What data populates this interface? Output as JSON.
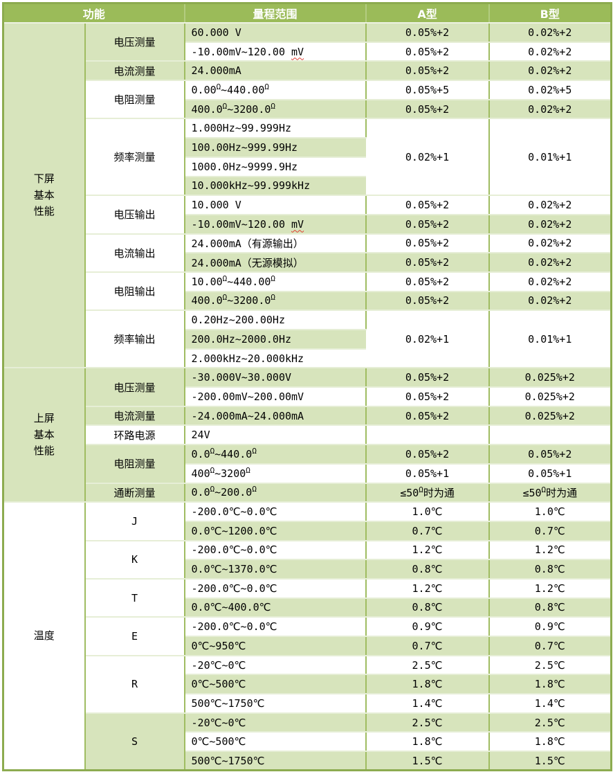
{
  "colors": {
    "header_green": "#9BBB59",
    "stripe_green": "#D7E4BC",
    "stripe_white": "#FFFFFF",
    "border_green": "#9FBC61",
    "squiggle_red": "#E03A2F",
    "header_text": "#FFFFFF"
  },
  "table": {
    "headers": [
      {
        "label": "功能",
        "colspan": 2
      },
      {
        "label": "量程范围",
        "colspan": 1
      },
      {
        "label": "A型",
        "colspan": 1
      },
      {
        "label": "B型",
        "colspan": 1
      }
    ],
    "groups": [
      {
        "label": "下屏\n基本\n性能",
        "functions": [
          {
            "label": "电压测量",
            "rows": [
              {
                "range": "60.000 V",
                "a": "0.05%+2",
                "b": "0.02%+2"
              },
              {
                "range": "-10.00mV~120.00 mV",
                "a": "0.05%+2",
                "b": "0.02%+2",
                "squiggle_under": "mV"
              }
            ]
          },
          {
            "label": "电流测量",
            "rows": [
              {
                "range": "24.000mA",
                "a": "0.05%+2",
                "b": "0.02%+2"
              }
            ]
          },
          {
            "label": "电阻测量",
            "rows": [
              {
                "range": "0.00Ω~440.00Ω",
                "a": "0.05%+5",
                "b": "0.02%+5"
              },
              {
                "range": "400.0Ω~3200.0Ω",
                "a": "0.05%+2",
                "b": "0.02%+2"
              }
            ]
          },
          {
            "label": "频率测量",
            "merged": {
              "a": "0.02%+1",
              "b": "0.01%+1"
            },
            "rows": [
              {
                "range": "1.000Hz~99.999Hz"
              },
              {
                "range": "100.00Hz~999.99Hz"
              },
              {
                "range": "1000.0Hz~9999.9Hz"
              },
              {
                "range": "10.000kHz~99.999kHz"
              }
            ]
          },
          {
            "label": "电压输出",
            "rows": [
              {
                "range": "10.000 V",
                "a": "0.05%+2",
                "b": "0.02%+2"
              },
              {
                "range": "-10.00mV~120.00 mV",
                "a": "0.05%+2",
                "b": "0.02%+2",
                "squiggle_under": "mV"
              }
            ]
          },
          {
            "label": "电流输出",
            "rows": [
              {
                "range": "24.000mA（有源输出）",
                "a": "0.05%+2",
                "b": "0.02%+2"
              },
              {
                "range": "24.000mA（无源模拟）",
                "a": "0.05%+2",
                "b": "0.02%+2"
              }
            ]
          },
          {
            "label": "电阻输出",
            "rows": [
              {
                "range": "10.00Ω~440.00Ω",
                "a": "0.05%+2",
                "b": "0.02%+2"
              },
              {
                "range": "400.0Ω~3200.0Ω",
                "a": "0.05%+2",
                "b": "0.02%+2"
              }
            ]
          },
          {
            "label": "频率输出",
            "merged": {
              "a": "0.02%+1",
              "b": "0.01%+1"
            },
            "rows": [
              {
                "range": "0.20Hz~200.00Hz"
              },
              {
                "range": "200.0Hz~2000.0Hz"
              },
              {
                "range": "2.000kHz~20.000kHz"
              }
            ]
          }
        ]
      },
      {
        "label": "上屏\n基本\n性能",
        "functions": [
          {
            "label": "电压测量",
            "rows": [
              {
                "range": "-30.000V~30.000V",
                "a": "0.05%+2",
                "b": "0.025%+2"
              },
              {
                "range": "-200.00mV~200.00mV",
                "a": "0.05%+2",
                "b": "0.025%+2"
              }
            ]
          },
          {
            "label": "电流测量",
            "rows": [
              {
                "range": "-24.000mA~24.000mA",
                "a": "0.05%+2",
                "b": "0.025%+2"
              }
            ]
          },
          {
            "label": "环路电源",
            "rows": [
              {
                "range": "24V",
                "a": "",
                "b": ""
              }
            ]
          },
          {
            "label": "电阻测量",
            "rows": [
              {
                "range": "0.0Ω~440.0Ω",
                "a": "0.05%+2",
                "b": "0.05%+2"
              },
              {
                "range": "400Ω~3200Ω",
                "a": "0.05%+1",
                "b": "0.05%+1"
              }
            ]
          },
          {
            "label": "通断测量",
            "rows": [
              {
                "range": "0.0Ω~200.0Ω",
                "a": "≤50Ω时为通",
                "b": "≤50Ω时为通"
              }
            ]
          }
        ]
      },
      {
        "label": "温度",
        "functions": [
          {
            "label": "J",
            "rows": [
              {
                "range": "-200.0℃~0.0℃",
                "a": "1.0℃",
                "b": "1.0℃"
              },
              {
                "range": "0.0℃~1200.0℃",
                "a": "0.7℃",
                "b": "0.7℃"
              }
            ]
          },
          {
            "label": "K",
            "rows": [
              {
                "range": "-200.0℃~0.0℃",
                "a": "1.2℃",
                "b": "1.2℃"
              },
              {
                "range": "0.0℃~1370.0℃",
                "a": "0.8℃",
                "b": "0.8℃"
              }
            ]
          },
          {
            "label": "T",
            "rows": [
              {
                "range": "-200.0℃~0.0℃",
                "a": "1.2℃",
                "b": "1.2℃"
              },
              {
                "range": "0.0℃~400.0℃",
                "a": "0.8℃",
                "b": "0.8℃"
              }
            ]
          },
          {
            "label": "E",
            "rows": [
              {
                "range": "-200.0℃~0.0℃",
                "a": "0.9℃",
                "b": "0.9℃"
              },
              {
                "range": "0℃~950℃",
                "a": "0.7℃",
                "b": "0.7℃"
              }
            ]
          },
          {
            "label": "R",
            "rows": [
              {
                "range": "-20℃~0℃",
                "a": "2.5℃",
                "b": "2.5℃"
              },
              {
                "range": "0℃~500℃",
                "a": "1.8℃",
                "b": "1.8℃"
              },
              {
                "range": "500℃~1750℃",
                "a": "1.4℃",
                "b": "1.4℃"
              }
            ]
          },
          {
            "label": "S",
            "rows": [
              {
                "range": "-20℃~0℃",
                "a": "2.5℃",
                "b": "2.5℃"
              },
              {
                "range": "0℃~500℃",
                "a": "1.8℃",
                "b": "1.8℃"
              },
              {
                "range": "500℃~1750℃",
                "a": "1.5℃",
                "b": "1.5℃"
              }
            ]
          }
        ]
      }
    ]
  }
}
